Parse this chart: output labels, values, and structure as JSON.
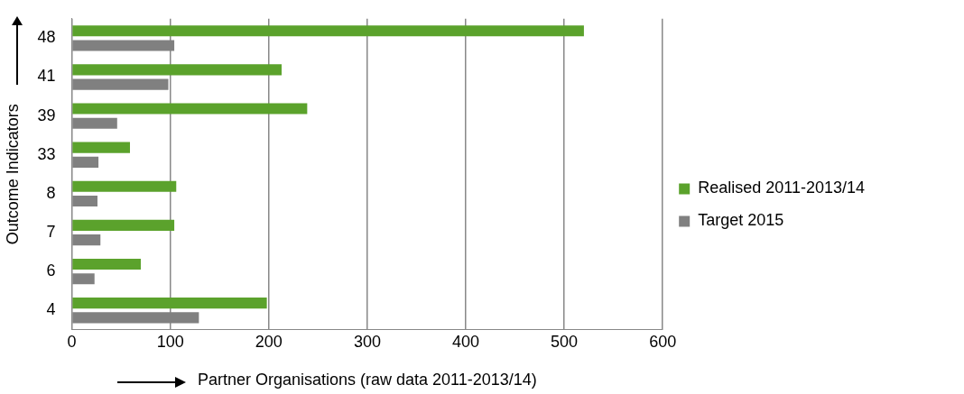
{
  "chart_data": {
    "type": "bar",
    "orientation": "horizontal",
    "xlabel": "Partner Organisations (raw data 2011-2013/14)",
    "ylabel": "Outcome Indicators",
    "categories": [
      "48",
      "41",
      "39",
      "33",
      "8",
      "7",
      "6",
      "4"
    ],
    "series": [
      {
        "name": "Realised 2011-2013/14",
        "color": "#5ba22c",
        "values": [
          520,
          213,
          239,
          59,
          106,
          104,
          70,
          198
        ]
      },
      {
        "name": "Target 2015",
        "color": "#808080",
        "values": [
          104,
          98,
          46,
          27,
          26,
          29,
          23,
          129
        ]
      }
    ],
    "xlim": [
      0,
      600
    ],
    "xticks": [
      0,
      100,
      200,
      300,
      400,
      500,
      600
    ],
    "grid": "x",
    "legend": "right"
  }
}
